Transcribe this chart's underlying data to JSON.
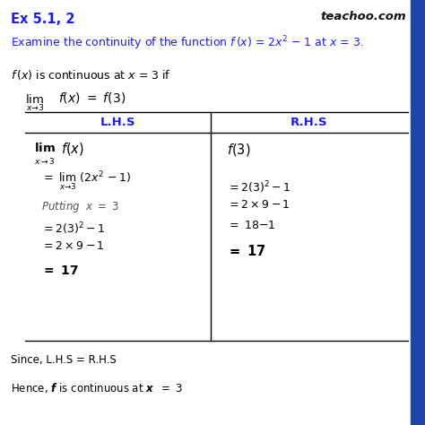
{
  "bg_color": "#ffffff",
  "title_text": "Ex 5.1, 2",
  "title_color": "#1a1aff",
  "watermark": "teachoo.com",
  "watermark_color": "#111111",
  "text_color": "#000000",
  "blue_color": "#1a1aff",
  "table_line_color": "#000000",
  "lhs_header": "L.H.S",
  "rhs_header": "R.H.S",
  "figsize": [
    4.74,
    4.74
  ],
  "dpi": 100,
  "right_bar_color": "#2244aa"
}
